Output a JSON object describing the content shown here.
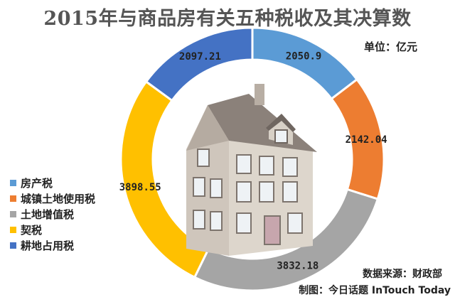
{
  "chart_data": {
    "type": "pie",
    "title": "2015年与商品房有关五种税收及其决算数",
    "unit": "单位：亿元",
    "categories": [
      "房产税",
      "城镇土地使用税",
      "土地增值税",
      "契税",
      "耕地占用税"
    ],
    "values": [
      2050.9,
      2142.04,
      3832.18,
      3898.55,
      2097.21
    ],
    "value_labels": [
      "2050.9",
      "2142.04",
      "3832.18",
      "3898.55",
      "2097.21"
    ],
    "colors": [
      "#5B9BD5",
      "#ED7D31",
      "#A5A5A5",
      "#FFC000",
      "#4472C4"
    ],
    "legend_position": "left"
  },
  "source": "数据来源：财政部",
  "credit": "制图：今日话题 InTouch Today"
}
